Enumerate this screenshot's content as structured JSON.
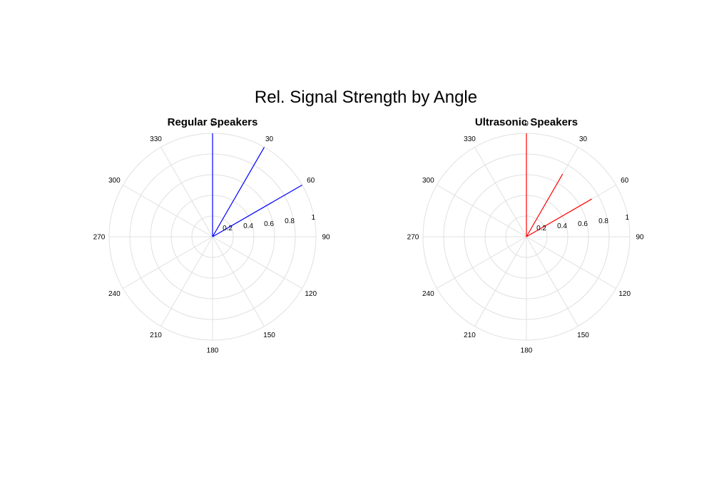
{
  "figure": {
    "title": "Rel. Signal Strength by Angle"
  },
  "chart_data": [
    {
      "type": "polar",
      "title": "Regular Speakers",
      "theta_unit": "degrees",
      "theta_zero": "top",
      "theta_direction": "clockwise",
      "theta_ticks": [
        "0",
        "30",
        "60",
        "90",
        "120",
        "150",
        "180",
        "210",
        "240",
        "270",
        "300",
        "330"
      ],
      "r_ticks": [
        "0.2",
        "0.4",
        "0.6",
        "0.8",
        "1"
      ],
      "rlim": [
        0,
        1
      ],
      "grid": true,
      "color": "#0000ff",
      "series": [
        {
          "theta": [
            0,
            30,
            60
          ],
          "r": [
            1.0,
            1.0,
            1.0
          ]
        }
      ]
    },
    {
      "type": "polar",
      "title": "Ultrasonic Speakers",
      "theta_unit": "degrees",
      "theta_zero": "top",
      "theta_direction": "clockwise",
      "theta_ticks": [
        "0",
        "30",
        "60",
        "90",
        "120",
        "150",
        "180",
        "210",
        "240",
        "270",
        "300",
        "330"
      ],
      "r_ticks": [
        "0.2",
        "0.4",
        "0.6",
        "0.8",
        "1"
      ],
      "rlim": [
        0,
        1
      ],
      "grid": true,
      "color": "#ff0000",
      "series": [
        {
          "theta": [
            0,
            30,
            60
          ],
          "r": [
            1.0,
            0.7,
            0.73
          ]
        }
      ]
    }
  ]
}
